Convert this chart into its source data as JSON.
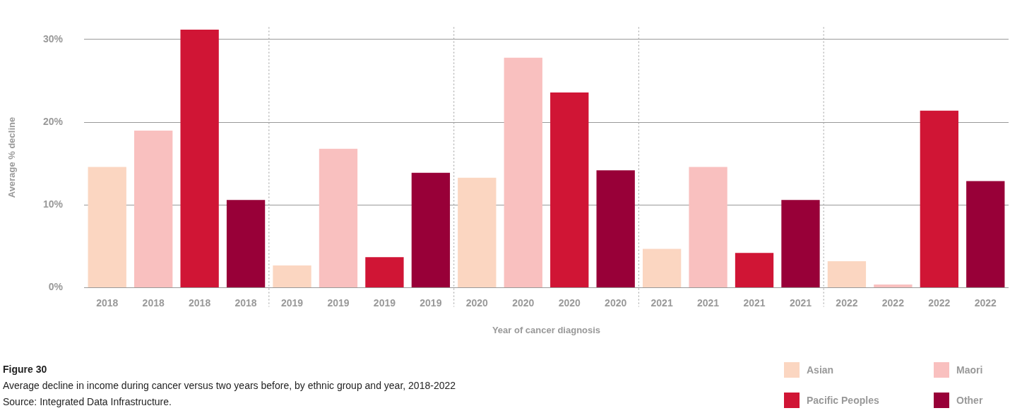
{
  "chart_data": {
    "type": "bar",
    "title": "Figure 30",
    "subtitle": "Average decline in income during cancer versus two years before, by ethnic group and year, 2018-2022",
    "xlabel": "Year of cancer diagnosis",
    "ylabel": "Average % decline",
    "categories": [
      "2018",
      "2018",
      "2018",
      "2018",
      "2019",
      "2019",
      "2019",
      "2019",
      "2020",
      "2020",
      "2020",
      "2020",
      "2021",
      "2021",
      "2021",
      "2021",
      "2022",
      "2022",
      "2022",
      "2022"
    ],
    "series": [
      {
        "name": "Asian",
        "color": "#fbd6c1",
        "values": [
          14.6,
          null,
          null,
          null,
          2.7,
          null,
          null,
          null,
          13.3,
          null,
          null,
          null,
          4.7,
          null,
          null,
          null,
          3.2,
          null,
          null,
          null
        ]
      },
      {
        "name": "Maori",
        "color": "#f9c0bf",
        "values": [
          null,
          19.0,
          null,
          null,
          null,
          16.8,
          null,
          null,
          null,
          27.8,
          null,
          null,
          null,
          14.6,
          null,
          null,
          null,
          0.4,
          null,
          null
        ]
      },
      {
        "name": "Pacific Peoples",
        "color": "#d01535",
        "values": [
          null,
          null,
          31.2,
          null,
          null,
          null,
          3.7,
          null,
          null,
          null,
          23.6,
          null,
          null,
          null,
          4.2,
          null,
          null,
          null,
          21.4,
          null
        ]
      },
      {
        "name": "Other",
        "color": "#980038",
        "values": [
          null,
          null,
          null,
          10.6,
          null,
          null,
          null,
          13.9,
          null,
          null,
          null,
          14.2,
          null,
          null,
          null,
          10.6,
          null,
          null,
          null,
          12.9
        ]
      }
    ],
    "ylim": [
      0,
      31.5
    ],
    "yticks": [
      {
        "value": 0,
        "label": "0%"
      },
      {
        "value": 10,
        "label": "10%"
      },
      {
        "value": 20,
        "label": "20%"
      },
      {
        "value": 30,
        "label": "30%"
      }
    ],
    "grid": "y",
    "legend": "bottom right",
    "annotations": [
      "Source: Integrated Data Infrastructure."
    ]
  }
}
